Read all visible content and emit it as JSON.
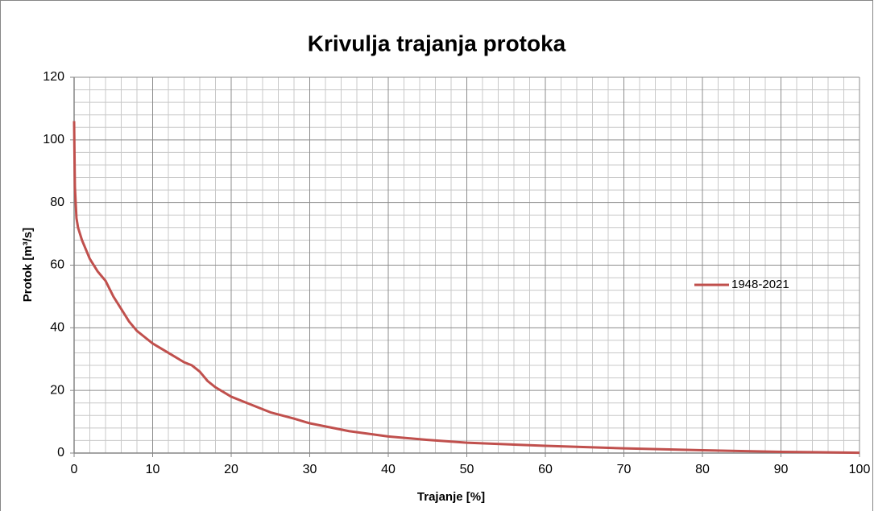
{
  "chart_data": {
    "type": "line",
    "title": "Krivulja trajanja protoka",
    "x_label": "Trajanje [%]",
    "y_label": "Protok [m³/s]",
    "x": [
      0,
      0.05,
      0.1,
      0.3,
      0.5,
      1,
      2,
      3,
      4,
      5,
      6,
      7,
      8,
      9,
      10,
      12,
      14,
      15,
      16,
      17,
      18,
      20,
      22,
      25,
      28,
      30,
      35,
      40,
      45,
      50,
      60,
      70,
      80,
      90,
      100
    ],
    "series": [
      {
        "name": "1948-2021",
        "color": "#c0504d",
        "values": [
          106,
          95,
          85,
          75,
          72,
          68,
          62,
          58,
          55,
          50,
          46,
          42,
          39,
          37,
          35,
          32,
          29,
          28,
          26,
          23,
          21,
          18,
          16,
          13,
          11,
          9.5,
          7,
          5.3,
          4.2,
          3.3,
          2.3,
          1.5,
          0.9,
          0.4,
          0.1
        ]
      }
    ],
    "xlim": [
      0,
      100
    ],
    "xticks": [
      0,
      10,
      20,
      30,
      40,
      50,
      60,
      70,
      80,
      90,
      100
    ],
    "ylim": [
      0,
      120
    ],
    "yticks": [
      0,
      20,
      40,
      60,
      80,
      100,
      120
    ],
    "grid": true,
    "minor_grid": 5,
    "legend": "right"
  }
}
